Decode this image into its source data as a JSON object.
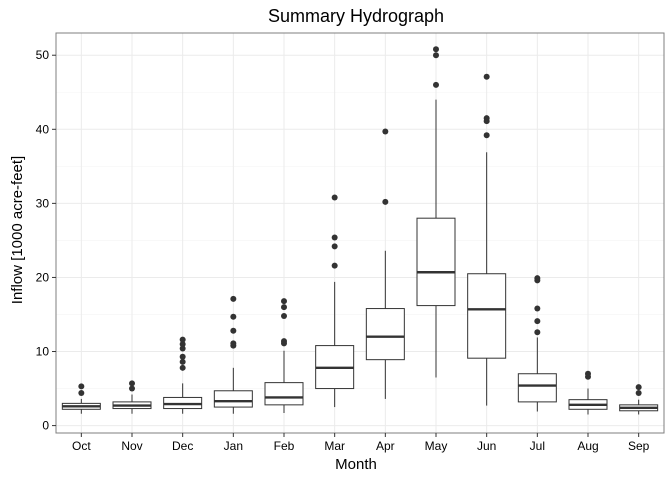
{
  "chart_data": {
    "type": "box",
    "title": "Summary Hydrograph",
    "xlabel": "Month",
    "ylabel": "Inflow [1000 acre-feet]",
    "ylim": [
      -1,
      53
    ],
    "yticks": [
      0,
      10,
      20,
      30,
      40,
      50
    ],
    "grid": true,
    "categories": [
      "Oct",
      "Nov",
      "Dec",
      "Jan",
      "Feb",
      "Mar",
      "Apr",
      "May",
      "Jun",
      "Jul",
      "Aug",
      "Sep"
    ],
    "boxes": [
      {
        "category": "Oct",
        "whisker_low": 1.6,
        "q1": 2.2,
        "median": 2.6,
        "q3": 3.0,
        "whisker_high": 3.6,
        "outliers": [
          4.4,
          5.3
        ]
      },
      {
        "category": "Nov",
        "whisker_low": 1.6,
        "q1": 2.3,
        "median": 2.7,
        "q3": 3.2,
        "whisker_high": 4.2,
        "outliers": [
          5.0,
          5.7
        ]
      },
      {
        "category": "Dec",
        "whisker_low": 1.6,
        "q1": 2.3,
        "median": 2.9,
        "q3": 3.8,
        "whisker_high": 5.7,
        "outliers": [
          7.8,
          8.6,
          9.3,
          10.4,
          11.0,
          11.6
        ]
      },
      {
        "category": "Jan",
        "whisker_low": 1.6,
        "q1": 2.5,
        "median": 3.3,
        "q3": 4.7,
        "whisker_high": 7.8,
        "outliers": [
          10.8,
          11.1,
          12.8,
          14.7,
          17.1
        ]
      },
      {
        "category": "Feb",
        "whisker_low": 1.7,
        "q1": 2.8,
        "median": 3.8,
        "q3": 5.8,
        "whisker_high": 10.1,
        "outliers": [
          11.1,
          11.4,
          14.8,
          16.0,
          16.8
        ]
      },
      {
        "category": "Mar",
        "whisker_low": 2.5,
        "q1": 5.0,
        "median": 7.8,
        "q3": 10.8,
        "whisker_high": 19.4,
        "outliers": [
          21.6,
          24.2,
          25.4,
          30.8
        ]
      },
      {
        "category": "Apr",
        "whisker_low": 3.6,
        "q1": 8.9,
        "median": 12.0,
        "q3": 15.8,
        "whisker_high": 23.6,
        "outliers": [
          30.2,
          39.7
        ]
      },
      {
        "category": "May",
        "whisker_low": 6.5,
        "q1": 16.2,
        "median": 20.7,
        "q3": 28.0,
        "whisker_high": 44.0,
        "outliers": [
          46.0,
          50.0,
          50.8
        ]
      },
      {
        "category": "Jun",
        "whisker_low": 2.7,
        "q1": 9.1,
        "median": 15.7,
        "q3": 20.5,
        "whisker_high": 36.9,
        "outliers": [
          39.2,
          41.1,
          41.5,
          47.1
        ]
      },
      {
        "category": "Jul",
        "whisker_low": 1.9,
        "q1": 3.2,
        "median": 5.4,
        "q3": 7.0,
        "whisker_high": 11.9,
        "outliers": [
          12.6,
          14.1,
          15.8,
          19.6,
          19.9
        ]
      },
      {
        "category": "Aug",
        "whisker_low": 1.5,
        "q1": 2.2,
        "median": 2.8,
        "q3": 3.5,
        "whisker_high": 5.0,
        "outliers": [
          6.6,
          7.0
        ]
      },
      {
        "category": "Sep",
        "whisker_low": 1.5,
        "q1": 2.0,
        "median": 2.4,
        "q3": 2.8,
        "whisker_high": 3.5,
        "outliers": [
          4.4,
          5.2
        ]
      }
    ],
    "colors": {
      "box_fill": "#ffffff",
      "box_stroke": "#333333",
      "outlier": "#333333",
      "grid_major": "#ebebeb",
      "grid_minor": "#f5f5f5",
      "panel_border": "#7f7f7f",
      "tick_text": "#000000"
    }
  }
}
